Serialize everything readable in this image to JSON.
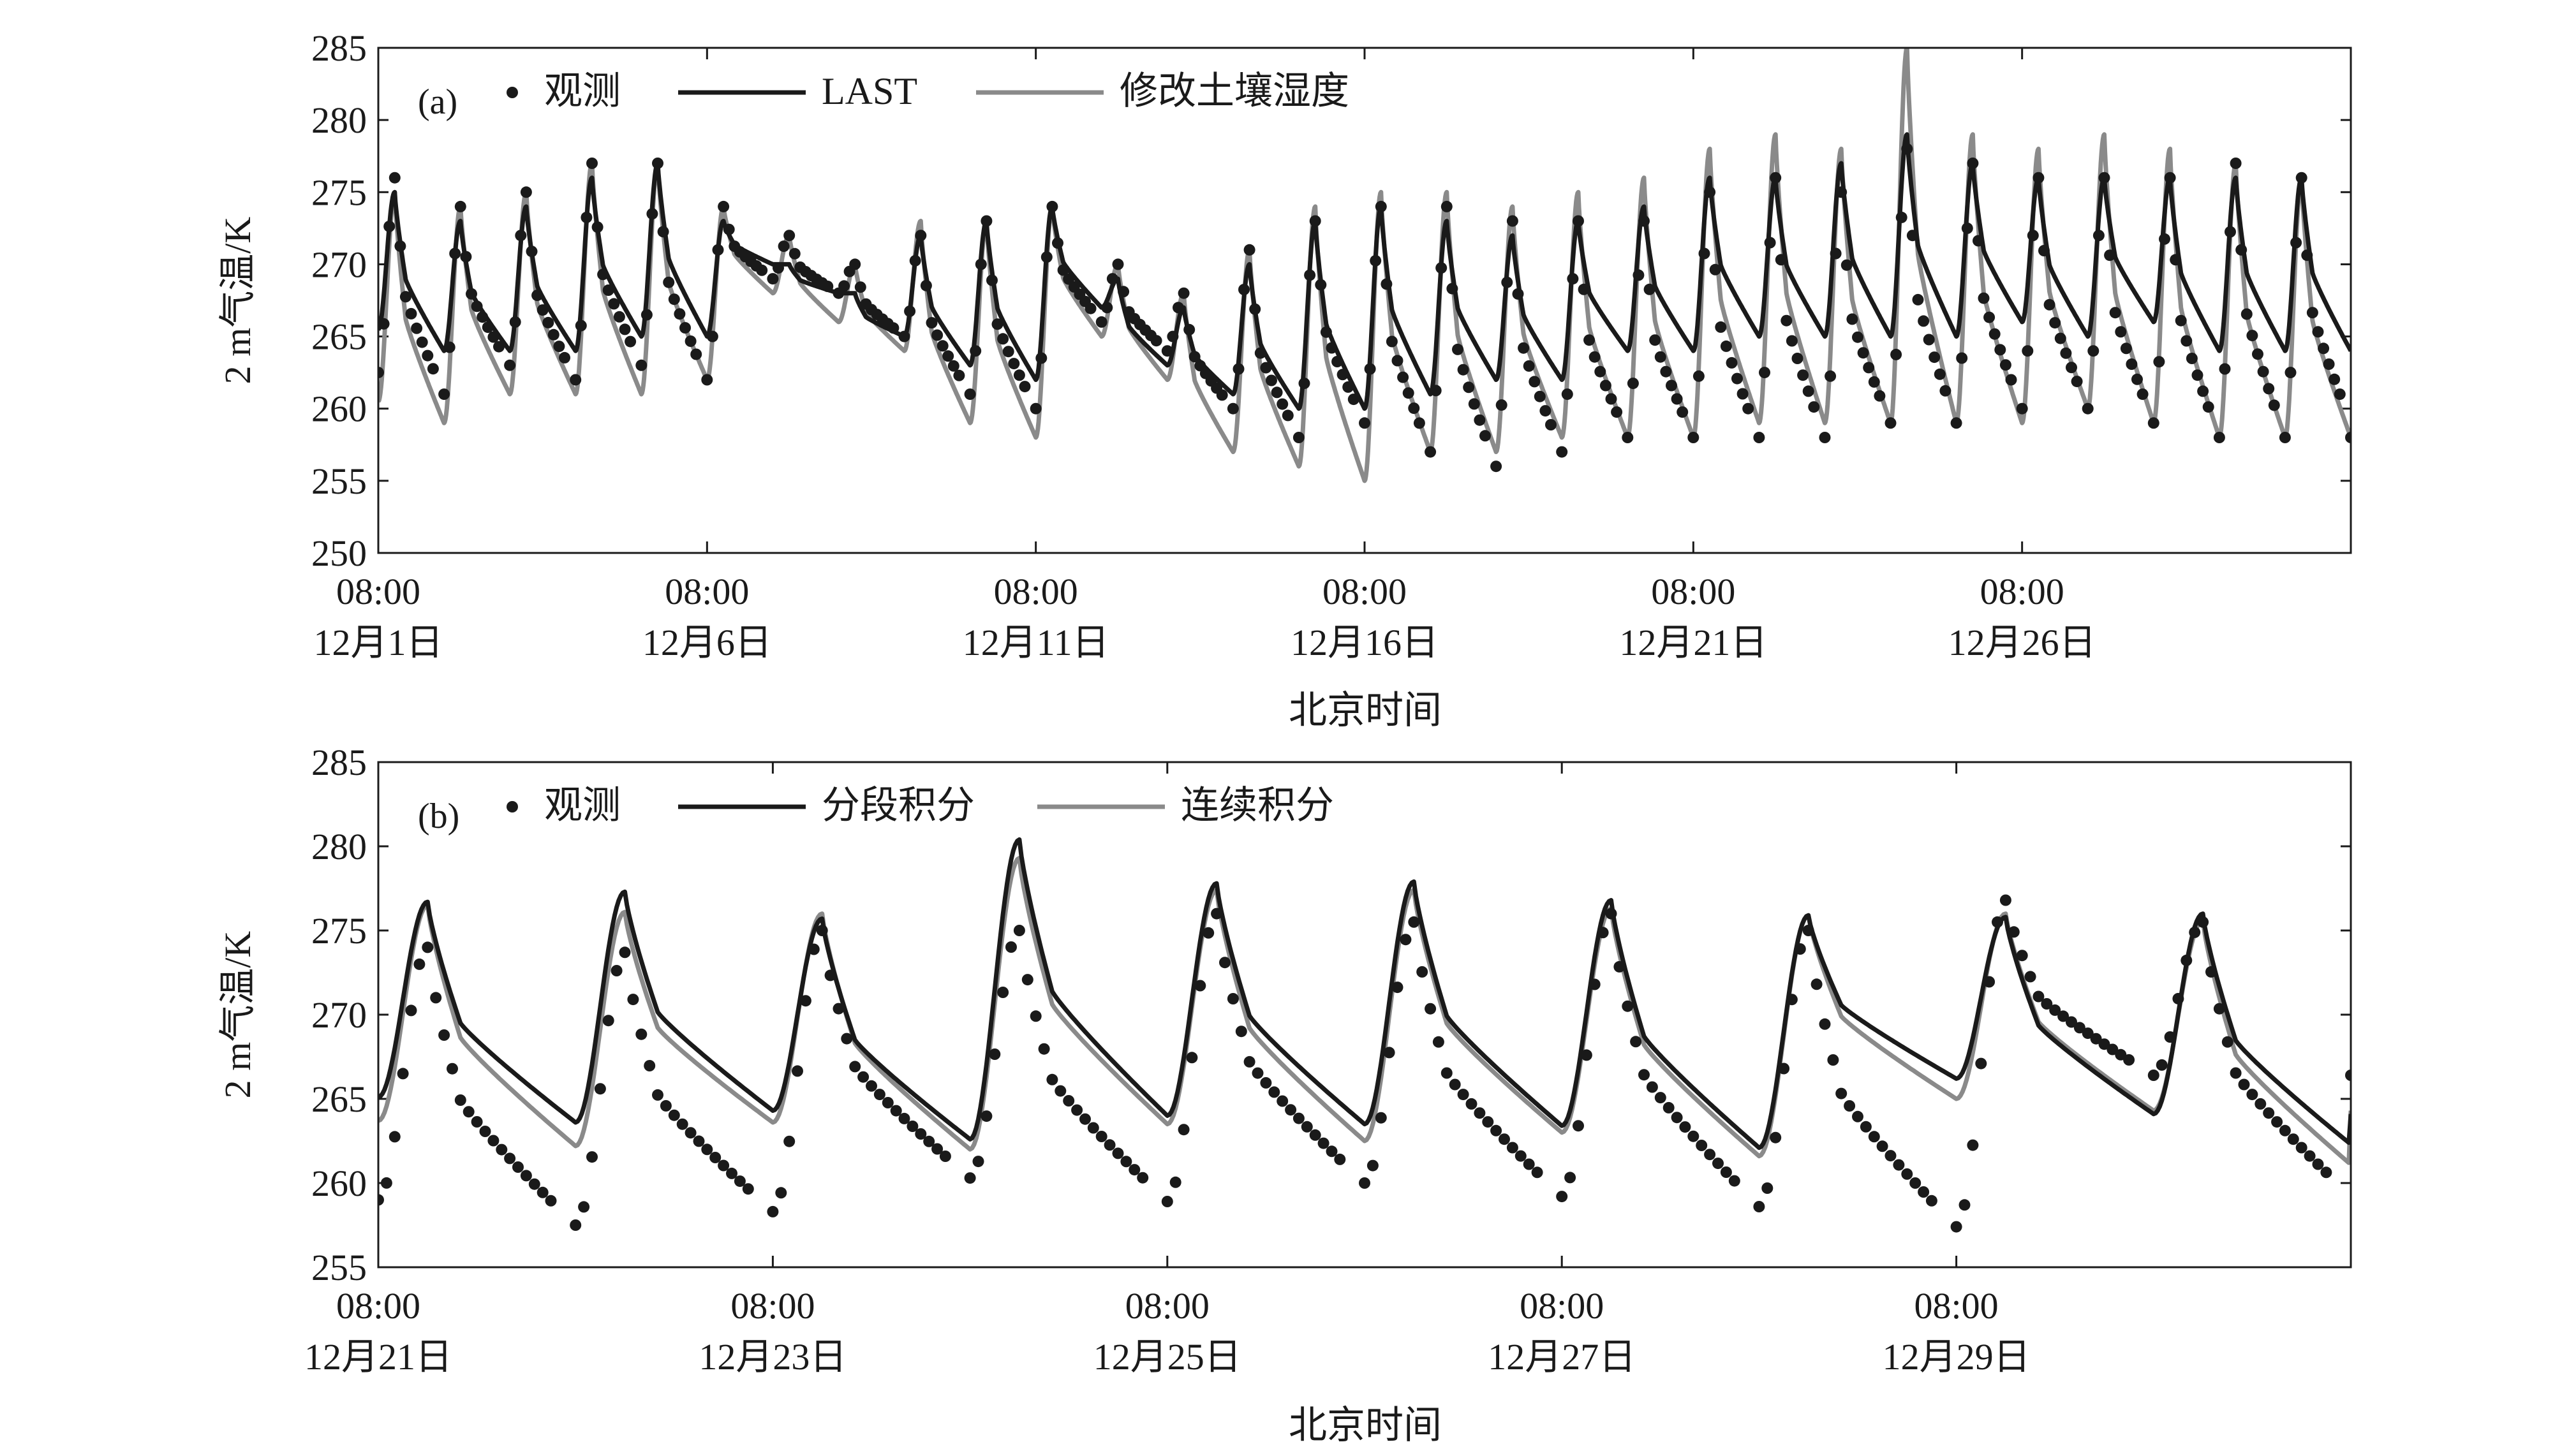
{
  "chart_data": [
    {
      "panel": "(a)",
      "type": "line",
      "xlabel": "北京时间",
      "ylabel": "2 m气温/K",
      "ylim": [
        250,
        285
      ],
      "yticks": [
        250,
        255,
        260,
        265,
        270,
        275,
        280,
        285
      ],
      "xlim_days": [
        0,
        30
      ],
      "xticks": [
        {
          "day": 0,
          "time": "08:00",
          "date": "12月1日"
        },
        {
          "day": 5,
          "time": "08:00",
          "date": "12月6日"
        },
        {
          "day": 10,
          "time": "08:00",
          "date": "12月11日"
        },
        {
          "day": 15,
          "time": "08:00",
          "date": "12月16日"
        },
        {
          "day": 20,
          "time": "08:00",
          "date": "12月21日"
        },
        {
          "day": 25,
          "time": "08:00",
          "date": "12月26日"
        }
      ],
      "legend_position": "top-left",
      "series": [
        {
          "name": "观测",
          "style": "dots",
          "color": "#1a1a1a",
          "daily_max": [
            276,
            274,
            275,
            277,
            277,
            274,
            272,
            270,
            272,
            273,
            274,
            270,
            268,
            271,
            273,
            274,
            274,
            273,
            273,
            273,
            275,
            276,
            275,
            278,
            277,
            276,
            276,
            276,
            277,
            276
          ],
          "daily_min": [
            261,
            263,
            262,
            263,
            262,
            269,
            268,
            265,
            261,
            260,
            266,
            264,
            260,
            258,
            259,
            257,
            256,
            257,
            258,
            258,
            258,
            258,
            259,
            259,
            260,
            260,
            259,
            258,
            258,
            259
          ]
        },
        {
          "name": "LAST",
          "style": "line",
          "color": "#1a1a1a",
          "daily_max": [
            275,
            273,
            274,
            276,
            277,
            273,
            270,
            268,
            272,
            273,
            274,
            269,
            267,
            270,
            273,
            274,
            273,
            272,
            273,
            274,
            276,
            276,
            277,
            279,
            277,
            276,
            276,
            276,
            276,
            276
          ],
          "daily_min": [
            264,
            264,
            264,
            265,
            265,
            270,
            268,
            265,
            263,
            262,
            267,
            263,
            261,
            260,
            260,
            261,
            262,
            262,
            264,
            264,
            265,
            265,
            265,
            265,
            266,
            265,
            266,
            264,
            264,
            264
          ]
        },
        {
          "name": "修改土壤湿度",
          "style": "line",
          "color": "#8a8a8a",
          "daily_max": [
            275,
            274,
            275,
            277,
            277,
            274,
            272,
            270,
            273,
            273,
            274,
            270,
            268,
            271,
            274,
            275,
            275,
            274,
            275,
            276,
            278,
            279,
            278,
            285,
            279,
            278,
            279,
            278,
            277,
            276
          ],
          "daily_min": [
            259,
            261,
            261,
            261,
            262,
            268,
            266,
            264,
            259,
            258,
            265,
            262,
            257,
            256,
            255,
            257,
            257,
            258,
            258,
            258,
            259,
            259,
            259,
            259,
            259,
            260,
            259,
            258,
            258,
            258
          ]
        }
      ]
    },
    {
      "panel": "(b)",
      "type": "line",
      "xlabel": "北京时间",
      "ylabel": "2 m气温/K",
      "ylim": [
        255,
        285
      ],
      "yticks": [
        255,
        260,
        265,
        270,
        275,
        280,
        285
      ],
      "xlim_days": [
        0,
        10
      ],
      "xticks": [
        {
          "day": 0,
          "time": "08:00",
          "date": "12月21日"
        },
        {
          "day": 2,
          "time": "08:00",
          "date": "12月23日"
        },
        {
          "day": 4,
          "time": "08:00",
          "date": "12月25日"
        },
        {
          "day": 6,
          "time": "08:00",
          "date": "12月27日"
        },
        {
          "day": 8,
          "time": "08:00",
          "date": "12月29日"
        }
      ],
      "legend_position": "top-left",
      "series": [
        {
          "name": "观测",
          "style": "dots",
          "color": "#1a1a1a",
          "daily_max": [
            274,
            273.7,
            275,
            275,
            276,
            275.5,
            276,
            275,
            276.8,
            275.5
          ],
          "daily_min": [
            257.5,
            258.3,
            260.3,
            258.9,
            260,
            259.2,
            258.6,
            257.4,
            266.4,
            259.2
          ]
        },
        {
          "name": "分段积分",
          "style": "line",
          "color": "#1a1a1a",
          "daily_max": [
            276.7,
            277.3,
            275.7,
            280.4,
            277.8,
            277.9,
            276.8,
            275.9,
            275.8,
            276
          ],
          "daily_min": [
            263.6,
            264.3,
            262.6,
            264,
            263.5,
            263.4,
            262.1,
            266.2,
            264.1,
            262.3
          ]
        },
        {
          "name": "连续积分",
          "style": "line",
          "color": "#8a8a8a",
          "daily_max": [
            276.5,
            276.1,
            276,
            279.3,
            277.4,
            277.4,
            276.3,
            275.9,
            276,
            275.6
          ],
          "daily_min": [
            262.2,
            263.6,
            262,
            263.5,
            262.5,
            263,
            261.6,
            265,
            264.3,
            261.1
          ]
        }
      ]
    }
  ]
}
